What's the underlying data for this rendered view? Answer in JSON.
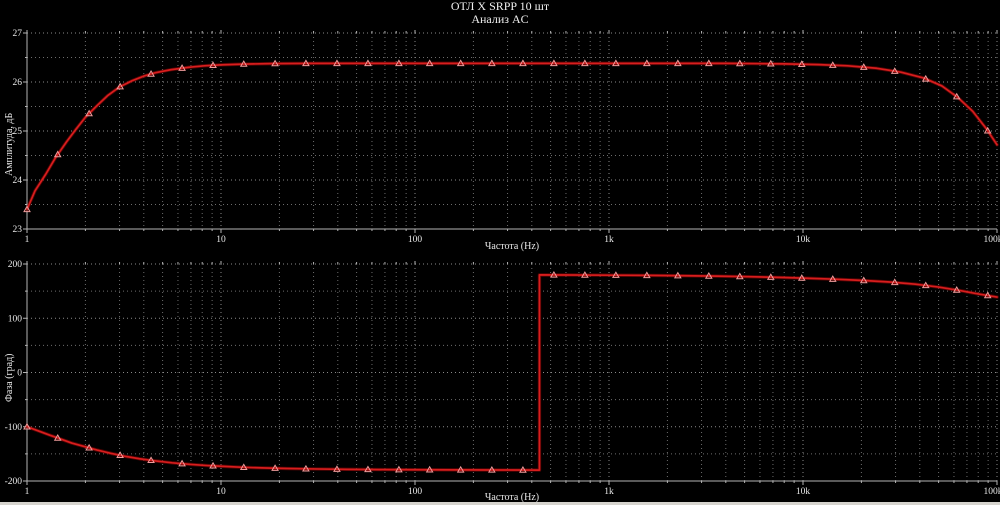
{
  "title": "ОТЛ X SRPP 10 шт",
  "subtitle": "Анализ AC",
  "colors": {
    "background": "#000000",
    "curve_core": "#d81e1e",
    "curve_glow": "#7d0404",
    "marker": "#f09c9c",
    "grid_minor": "#6d6d6d",
    "grid_major": "#8a8a8a",
    "axis": "#b4b4b4",
    "text": "#e8e8e8"
  },
  "chart_data": [
    {
      "type": "line",
      "name": "amplitude-response",
      "xlabel": "Частота (Hz)",
      "ylabel": "Амплитуда, дБ",
      "x_scale": "log",
      "x_range": [
        1,
        100000
      ],
      "x_tick_labels": [
        "1",
        "10",
        "100",
        "1k",
        "10k",
        "100k"
      ],
      "x_tick_values": [
        1,
        10,
        100,
        1000,
        10000,
        100000
      ],
      "ylim": [
        23,
        27
      ],
      "y_tick_values": [
        27,
        26,
        25,
        24,
        23
      ],
      "y_tick_labels": [
        "27",
        "26",
        "25",
        "24",
        "23"
      ],
      "y_minor_step": 0.5,
      "grid": true,
      "legend": "none",
      "series": [
        {
          "name": "Амплитуда",
          "points": [
            [
              1,
              23.4
            ],
            [
              1.1,
              23.78
            ],
            [
              1.25,
              24.12
            ],
            [
              1.4,
              24.45
            ],
            [
              1.6,
              24.78
            ],
            [
              1.8,
              25.05
            ],
            [
              2.0,
              25.28
            ],
            [
              2.3,
              25.52
            ],
            [
              2.6,
              25.72
            ],
            [
              3.0,
              25.9
            ],
            [
              3.5,
              26.03
            ],
            [
              4.0,
              26.12
            ],
            [
              4.6,
              26.19
            ],
            [
              5.5,
              26.25
            ],
            [
              6.8,
              26.3
            ],
            [
              8.2,
              26.33
            ],
            [
              10,
              26.35
            ],
            [
              13,
              26.365
            ],
            [
              18,
              26.375
            ],
            [
              30,
              26.38
            ],
            [
              100,
              26.38
            ],
            [
              1000,
              26.38
            ],
            [
              4000,
              26.38
            ],
            [
              8000,
              26.37
            ],
            [
              12000,
              26.355
            ],
            [
              17000,
              26.33
            ],
            [
              24000,
              26.28
            ],
            [
              32000,
              26.2
            ],
            [
              42000,
              26.08
            ],
            [
              52000,
              25.92
            ],
            [
              63000,
              25.68
            ],
            [
              75000,
              25.4
            ],
            [
              88000,
              25.05
            ],
            [
              100000,
              24.72
            ]
          ]
        }
      ],
      "marker_freqs": [
        1,
        1.44,
        2.09,
        3.02,
        4.36,
        6.3,
        9.1,
        13.1,
        19.0,
        27.4,
        39.6,
        57.2,
        82.6,
        119,
        172,
        249,
        360,
        520,
        751,
        1085,
        1567,
        2264,
        3270,
        4724,
        6824,
        9857,
        14238,
        20567,
        29710,
        42917,
        61995,
        89551
      ]
    },
    {
      "type": "line",
      "name": "phase-response",
      "xlabel": "Частота (Hz)",
      "ylabel": "Фаза (град)",
      "x_scale": "log",
      "x_range": [
        1,
        100000
      ],
      "x_tick_labels": [
        "1",
        "10",
        "100",
        "1k",
        "10k",
        "100k"
      ],
      "x_tick_values": [
        1,
        10,
        100,
        1000,
        10000,
        100000
      ],
      "ylim": [
        -200,
        200
      ],
      "y_tick_values": [
        200,
        100,
        0,
        -100,
        -200
      ],
      "y_tick_labels": [
        "200",
        "100",
        "0",
        "-100",
        "-200"
      ],
      "y_minor_step": 50,
      "grid": true,
      "legend": "none",
      "phase_wrap_hz": 438,
      "series": [
        {
          "name": "Фаза",
          "points": [
            [
              1,
              -100
            ],
            [
              1.15,
              -108
            ],
            [
              1.3,
              -115
            ],
            [
              1.5,
              -123
            ],
            [
              1.7,
              -130
            ],
            [
              2.0,
              -137
            ],
            [
              2.3,
              -143
            ],
            [
              2.7,
              -149
            ],
            [
              3.2,
              -154.5
            ],
            [
              3.8,
              -159
            ],
            [
              4.6,
              -163
            ],
            [
              5.6,
              -166.5
            ],
            [
              7.0,
              -169.5
            ],
            [
              8.5,
              -171.5
            ],
            [
              10,
              -172.8
            ],
            [
              13,
              -174.8
            ],
            [
              17,
              -176
            ],
            [
              22,
              -177
            ],
            [
              30,
              -177.8
            ],
            [
              45,
              -178.5
            ],
            [
              70,
              -179
            ],
            [
              100,
              -179.2
            ],
            [
              160,
              -179.5
            ],
            [
              250,
              -179.7
            ],
            [
              438,
              -179.9
            ],
            [
              438,
              179.9
            ],
            [
              600,
              179.7
            ],
            [
              1000,
              179.4
            ],
            [
              1600,
              179
            ],
            [
              2400,
              178.4
            ],
            [
              3600,
              177.6
            ],
            [
              5200,
              176.6
            ],
            [
              7500,
              175.3
            ],
            [
              10000,
              174
            ],
            [
              14000,
              172.2
            ],
            [
              20000,
              169.8
            ],
            [
              28000,
              166.8
            ],
            [
              38000,
              162.8
            ],
            [
              50000,
              157.5
            ],
            [
              65000,
              150.8
            ],
            [
              80000,
              144.8
            ],
            [
              100000,
              139
            ]
          ]
        }
      ],
      "marker_freqs": [
        1,
        1.44,
        2.09,
        3.02,
        4.36,
        6.3,
        9.1,
        13.1,
        19.0,
        27.4,
        39.6,
        57.2,
        82.6,
        119,
        172,
        249,
        360,
        520,
        751,
        1085,
        1567,
        2264,
        3270,
        4724,
        6824,
        9857,
        14238,
        20567,
        29710,
        42917,
        61995,
        89551
      ]
    }
  ]
}
